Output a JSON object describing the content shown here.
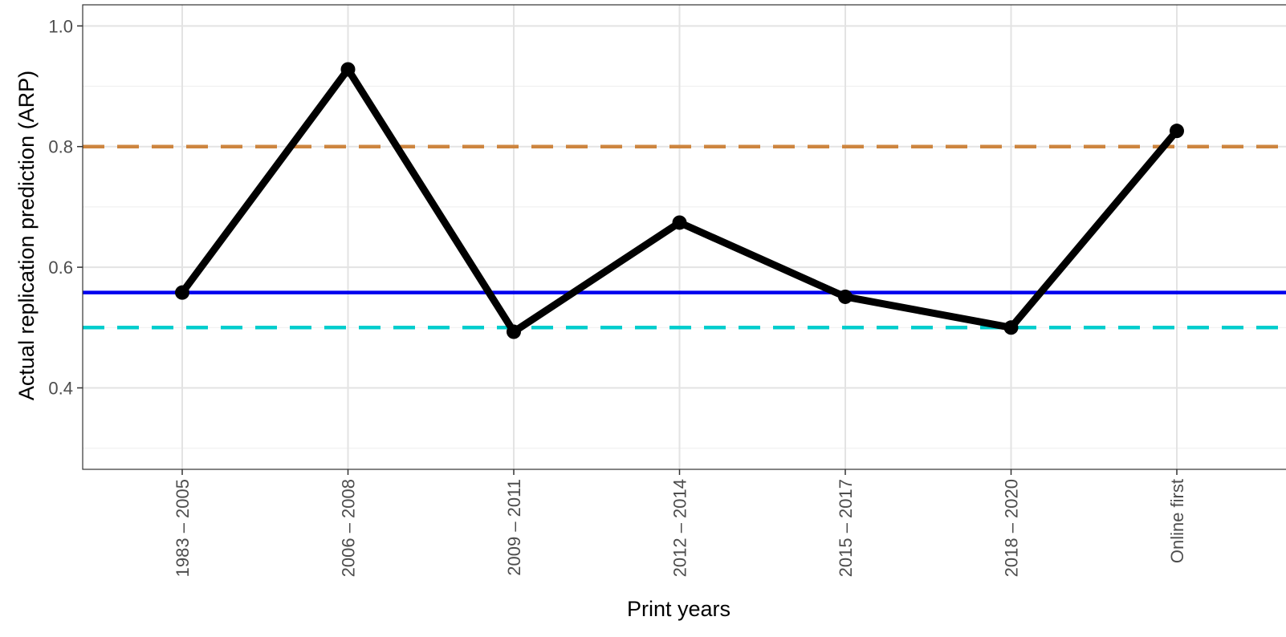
{
  "chart_data": {
    "type": "line",
    "xlabel": "Print years",
    "ylabel": "Actual replication prediction (ARP)",
    "categories": [
      "1983 – 2005",
      "2006 – 2008",
      "2009 – 2011",
      "2012 – 2014",
      "2015 – 2017",
      "2018 – 2020",
      "Online first"
    ],
    "ylim": [
      0.265,
      1.035
    ],
    "y_ticks": [
      0.4,
      0.6,
      0.8,
      1.0
    ],
    "y_tick_labels": [
      "0.4",
      "0.6",
      "0.8",
      "1.0"
    ],
    "grid": true,
    "series": [
      {
        "values": [
          0.558,
          0.928,
          0.493,
          0.674,
          0.551,
          0.5,
          0.826
        ],
        "color": "#000000"
      }
    ],
    "reference_lines": [
      {
        "y": 0.8,
        "style": "dashed",
        "color": "#cd853f"
      },
      {
        "y": 0.558,
        "style": "solid",
        "color": "#0000ee"
      },
      {
        "y": 0.5,
        "style": "dashed",
        "color": "#00cdcd"
      }
    ]
  }
}
